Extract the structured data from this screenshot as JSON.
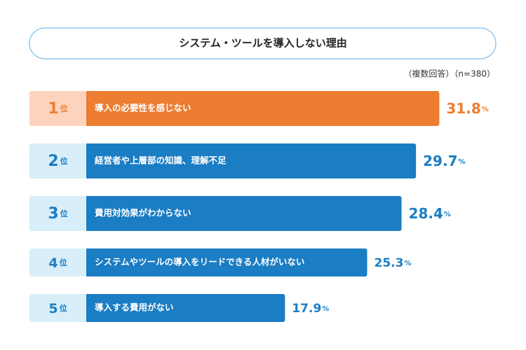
{
  "chart_data": {
    "type": "bar",
    "title": "システム・ツールを導入しない理由",
    "subtitle": "（複数回答）（n=380）",
    "rank_labels": [
      "1",
      "2",
      "3",
      "4",
      "5"
    ],
    "rank_suffix": "位",
    "categories": [
      "導入の必要性を感じない",
      "経営者や上層部の知識、理解不足",
      "費用対効果がわからない",
      "システムやツールの導入をリードできる人材がいない",
      "導入する費用がない"
    ],
    "values": [
      31.8,
      29.7,
      28.4,
      25.3,
      17.9
    ],
    "value_unit": "%",
    "colors": [
      "#ed7d31",
      "#1b7dc4",
      "#1b7dc4",
      "#1b7dc4",
      "#1b7dc4"
    ],
    "rank_box_colors": [
      "#fdd3bd",
      "#d8eef8",
      "#d8eef8",
      "#d8eef8",
      "#d8eef8"
    ]
  }
}
